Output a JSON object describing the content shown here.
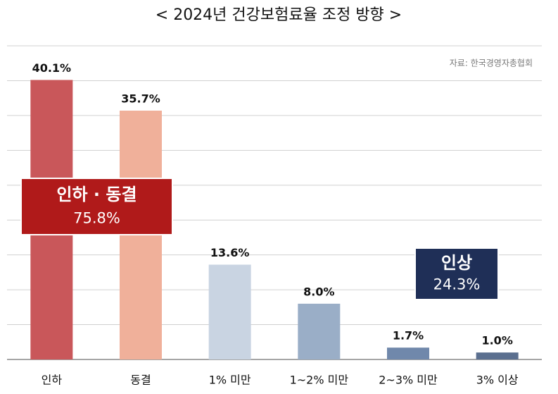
{
  "chart_data": {
    "type": "bar",
    "title": "< 2024년 건강보험료율 조정 방향 >",
    "source": "자료: 한국경영자총협회",
    "categories": [
      "인하",
      "동결",
      "1% 미만",
      "1~2% 미만",
      "2~3% 미만",
      "3% 이상"
    ],
    "values": [
      40.1,
      35.7,
      13.6,
      8.0,
      1.7,
      1.0
    ],
    "value_labels": [
      "40.1%",
      "35.7%",
      "13.6%",
      "8.0%",
      "1.7%",
      "1.0%"
    ],
    "colors": [
      "#c9575a",
      "#f0b09a",
      "#c9d4e2",
      "#9aaec7",
      "#7088ab",
      "#5b6f8f"
    ],
    "ylim": [
      0,
      45
    ],
    "yticks": [
      0,
      5,
      10,
      15,
      20,
      25,
      30,
      35,
      40,
      45
    ],
    "grid": true,
    "annotations": [
      {
        "text": "인하 · 동결",
        "value": 75.8,
        "value_label": "75.8%",
        "color": "#b01a1a"
      },
      {
        "text": "인상",
        "value": 24.3,
        "value_label": "24.3%",
        "color": "#1f2f57"
      }
    ]
  }
}
